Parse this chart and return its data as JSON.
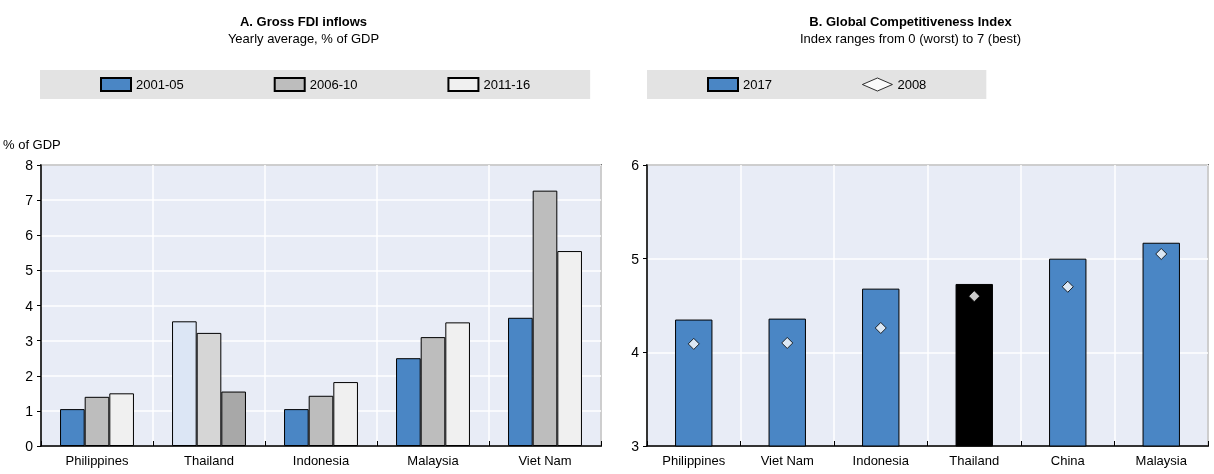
{
  "chart_data": [
    {
      "type": "bar",
      "title": "A. Gross FDI inflows",
      "subtitle": "Yearly average, % of GDP",
      "ylabel": "% of GDP",
      "categories": [
        "Philippines",
        "Thailand",
        "Indonesia",
        "Malaysia",
        "Viet Nam"
      ],
      "series": [
        {
          "name": "2001-05",
          "color": "#4a86c5",
          "colors": [
            "#4a86c5",
            "#dce6f5",
            "#4a86c5",
            "#4a86c5",
            "#4a86c5"
          ],
          "values": [
            1.05,
            3.55,
            1.05,
            2.5,
            3.65
          ]
        },
        {
          "name": "2006-10",
          "color": "#bdbdbd",
          "colors": [
            "#bdbdbd",
            "#d6d6d6",
            "#bdbdbd",
            "#bdbdbd",
            "#bdbdbd"
          ],
          "values": [
            1.4,
            3.22,
            1.43,
            3.1,
            7.27
          ]
        },
        {
          "name": "2011-16",
          "color": "#f0f0f0",
          "colors": [
            "#f0f0f0",
            "#a8a8a8",
            "#f0f0f0",
            "#f0f0f0",
            "#f0f0f0"
          ],
          "values": [
            1.5,
            1.55,
            1.82,
            3.52,
            5.55
          ]
        }
      ],
      "ylim": [
        0,
        8
      ],
      "yticks": [
        0,
        1,
        2,
        3,
        4,
        5,
        6,
        7,
        8
      ],
      "grid": true,
      "legend": "top"
    },
    {
      "type": "bar",
      "title": "B. Global Competitiveness Index",
      "subtitle": "Index ranges from 0 (worst) to 7 (best)",
      "categories": [
        "Philippines",
        "Viet Nam",
        "Indonesia",
        "Thailand",
        "China",
        "Malaysia"
      ],
      "series": [
        {
          "name": "2017",
          "color": "#4a86c5",
          "colors": [
            "#4a86c5",
            "#4a86c5",
            "#4a86c5",
            "#000000",
            "#4a86c5",
            "#4a86c5"
          ],
          "values": [
            4.35,
            4.36,
            4.68,
            4.73,
            5.0,
            5.17
          ]
        },
        {
          "name": "2008",
          "type": "scatter",
          "color": "#ffffff",
          "x": [
            "Philippines",
            "Viet Nam",
            "Indonesia",
            "Thailand",
            "China",
            "Malaysia"
          ],
          "values": [
            4.09,
            4.1,
            4.26,
            4.6,
            4.7,
            5.05
          ]
        }
      ],
      "marker": "diamond",
      "ylim": [
        3,
        6
      ],
      "yticks": [
        3,
        4,
        5,
        6
      ],
      "grid": true,
      "legend": "top"
    }
  ]
}
